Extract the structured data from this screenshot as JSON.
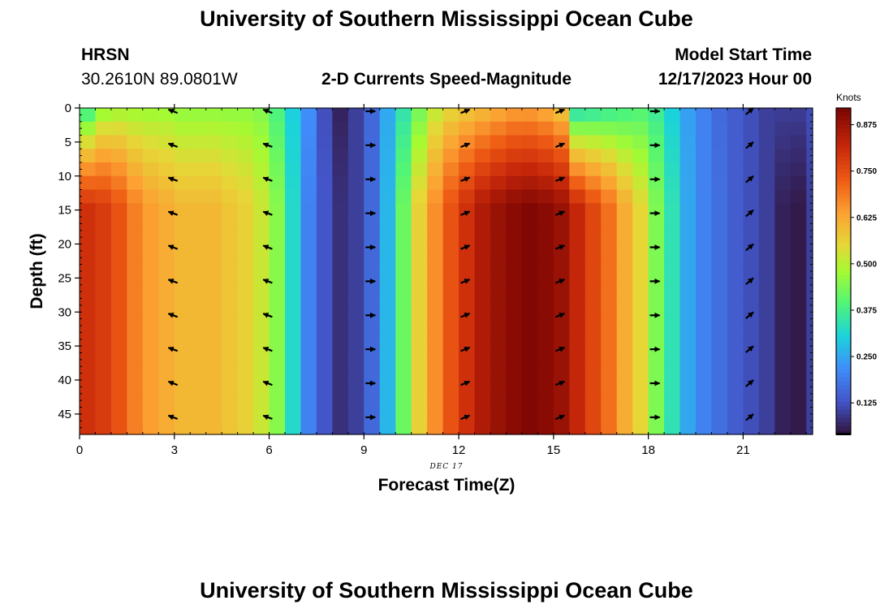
{
  "page": {
    "title_top": "University of Southern Mississippi Ocean Cube",
    "title_bottom": "University of Southern Mississippi Ocean Cube",
    "station": "HRSN",
    "coordinates": "30.2610N  89.0801W",
    "plot_title": "2-D Currents Speed-Magnitude",
    "model_start_label": "Model Start Time",
    "model_start_value": "12/17/2023 Hour 00",
    "date_tag": "DEC 17"
  },
  "chart_data": {
    "type": "heatmap",
    "title": "2-D Currents Speed-Magnitude",
    "xlabel": "Forecast Time(Z)",
    "ylabel": "Depth (ft)",
    "colorbar_label": "Knots",
    "xlim": [
      0,
      23.2
    ],
    "ylim": [
      0,
      48
    ],
    "x_ticks": [
      0,
      3,
      6,
      9,
      12,
      15,
      18,
      21
    ],
    "y_ticks": [
      0,
      5,
      10,
      15,
      20,
      25,
      30,
      35,
      40,
      45
    ],
    "colorbar_ticks": [
      "0.875",
      "0.750",
      "0.625",
      "0.500",
      "0.375",
      "0.250",
      "0.125"
    ],
    "colorbar_range": [
      0.04,
      0.92
    ],
    "hours": [
      0,
      0.5,
      1,
      1.5,
      2,
      2.5,
      3,
      3.5,
      4,
      4.5,
      5,
      5.5,
      6,
      6.5,
      7,
      7.5,
      8,
      8.5,
      9,
      9.5,
      10,
      10.5,
      11,
      11.5,
      12,
      12.5,
      13,
      13.5,
      14,
      14.5,
      15,
      15.5,
      16,
      16.5,
      17,
      17.5,
      18,
      18.5,
      19,
      19.5,
      20,
      20.5,
      21,
      21.5,
      22,
      22.5,
      23
    ],
    "speed_surface_knots": [
      0.34,
      0.44,
      0.46,
      0.46,
      0.46,
      0.46,
      0.45,
      0.45,
      0.45,
      0.45,
      0.45,
      0.44,
      0.38,
      0.3,
      0.22,
      0.12,
      0.06,
      0.1,
      0.16,
      0.25,
      0.34,
      0.42,
      0.5,
      0.54,
      0.56,
      0.58,
      0.6,
      0.62,
      0.62,
      0.6,
      0.56,
      0.3,
      0.32,
      0.34,
      0.36,
      0.38,
      0.36,
      0.3,
      0.24,
      0.2,
      0.16,
      0.14,
      0.12,
      0.1,
      0.1,
      0.1,
      0.12
    ],
    "speed_bottom_knots": [
      0.8,
      0.78,
      0.74,
      0.68,
      0.64,
      0.62,
      0.6,
      0.6,
      0.6,
      0.58,
      0.56,
      0.52,
      0.45,
      0.32,
      0.2,
      0.13,
      0.08,
      0.1,
      0.16,
      0.27,
      0.42,
      0.56,
      0.66,
      0.74,
      0.8,
      0.85,
      0.88,
      0.9,
      0.91,
      0.9,
      0.88,
      0.82,
      0.76,
      0.7,
      0.62,
      0.55,
      0.44,
      0.34,
      0.25,
      0.2,
      0.17,
      0.14,
      0.12,
      0.1,
      0.06,
      0.05,
      0.1
    ],
    "vector_columns": [
      {
        "hour": 2.75,
        "direction": "SW"
      },
      {
        "hour": 5.75,
        "direction": "SW"
      },
      {
        "hour": 9.0,
        "direction": "E"
      },
      {
        "hour": 12.0,
        "direction": "ENE"
      },
      {
        "hour": 15.0,
        "direction": "ENE"
      },
      {
        "hour": 18.0,
        "direction": "E"
      },
      {
        "hour": 21.0,
        "direction": "NE"
      }
    ],
    "vector_depths_ft": [
      0,
      5,
      10,
      15,
      20,
      25,
      30,
      35,
      40,
      45
    ]
  }
}
